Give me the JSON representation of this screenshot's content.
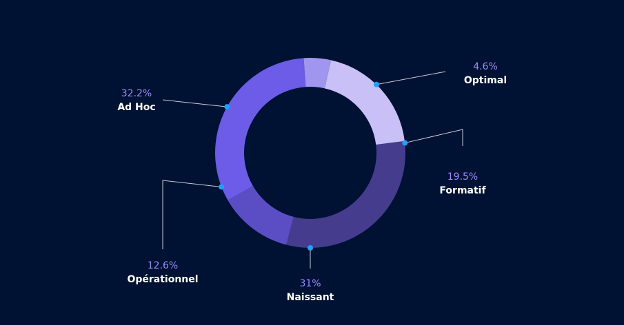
{
  "chart_data": {
    "type": "pie",
    "variant": "donut",
    "title": "",
    "start_angle_deg": -90,
    "slices": [
      {
        "name": "Ad Hoc",
        "value": 32.2,
        "label": "32.2%",
        "color": "#6c5ce7"
      },
      {
        "name": "Optimal",
        "value": 4.6,
        "label": "4.6%",
        "color": "#a096ef"
      },
      {
        "name": "Formatif",
        "value": 19.5,
        "label": "19.5%",
        "color": "#c8c0f6"
      },
      {
        "name": "Naissant",
        "value": 31,
        "label": "31%",
        "color": "#463c8e"
      },
      {
        "name": "Opérationnel",
        "value": 12.6,
        "label": "12.6%",
        "color": "#5b4ec4"
      }
    ],
    "legend": "none",
    "background": "#001233",
    "percent_color": "#9d8bff",
    "name_color": "#ffffff",
    "leader_color": "#c9ccd6",
    "marker_color": "#1aa3ff"
  }
}
